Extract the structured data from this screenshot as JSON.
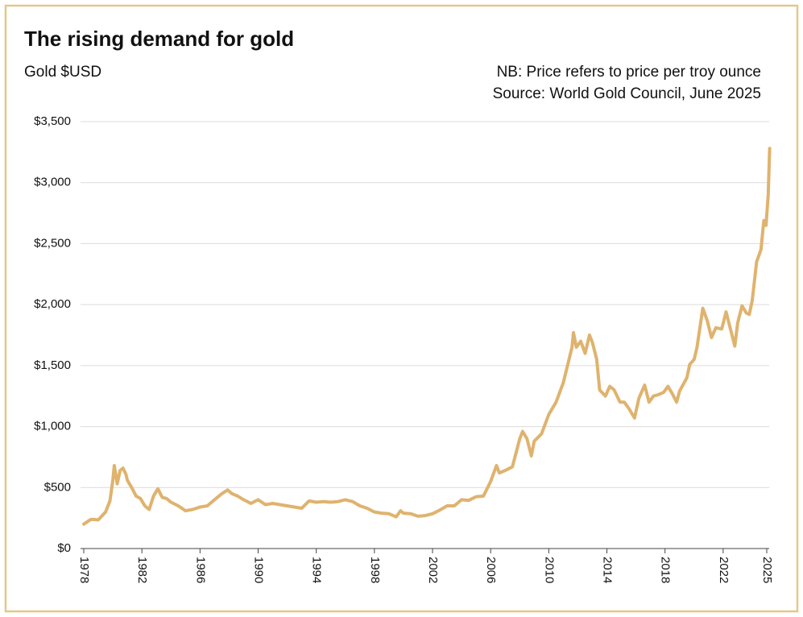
{
  "chart_data": {
    "type": "line",
    "title": "The rising demand for gold",
    "y_axis_label": "Gold $USD",
    "notes": [
      "NB: Price refers to price per troy ounce",
      "Source: World Gold Council, June 2025"
    ],
    "x": [
      1978.0,
      1978.5,
      1979.0,
      1979.5,
      1979.8,
      1980.0,
      1980.1,
      1980.3,
      1980.5,
      1980.7,
      1980.9,
      1981.0,
      1981.3,
      1981.6,
      1981.9,
      1982.2,
      1982.5,
      1982.8,
      1983.0,
      1983.1,
      1983.4,
      1983.7,
      1984.0,
      1984.5,
      1985.0,
      1985.5,
      1986.0,
      1986.5,
      1987.0,
      1987.5,
      1987.9,
      1988.2,
      1988.6,
      1989.0,
      1989.5,
      1990.0,
      1990.5,
      1991.0,
      1991.5,
      1992.0,
      1992.5,
      1993.0,
      1993.5,
      1994.0,
      1994.5,
      1995.0,
      1995.5,
      1996.0,
      1996.5,
      1997.0,
      1997.5,
      1998.0,
      1998.5,
      1999.0,
      1999.5,
      1999.8,
      2000.0,
      2000.5,
      2001.0,
      2001.5,
      2002.0,
      2002.5,
      2003.0,
      2003.5,
      2004.0,
      2004.5,
      2005.0,
      2005.5,
      2006.0,
      2006.4,
      2006.6,
      2007.0,
      2007.5,
      2008.0,
      2008.2,
      2008.5,
      2008.8,
      2009.0,
      2009.5,
      2010.0,
      2010.5,
      2011.0,
      2011.6,
      2011.7,
      2011.9,
      2012.2,
      2012.5,
      2012.8,
      2013.0,
      2013.3,
      2013.5,
      2013.9,
      2014.2,
      2014.5,
      2014.9,
      2015.2,
      2015.5,
      2015.9,
      2016.2,
      2016.6,
      2016.9,
      2017.2,
      2017.5,
      2017.9,
      2018.2,
      2018.5,
      2018.8,
      2019.0,
      2019.5,
      2019.7,
      2020.0,
      2020.2,
      2020.6,
      2020.9,
      2021.2,
      2021.5,
      2021.9,
      2022.2,
      2022.5,
      2022.8,
      2023.0,
      2023.3,
      2023.6,
      2023.8,
      2024.0,
      2024.3,
      2024.6,
      2024.8,
      2024.95,
      2025.1,
      2025.2
    ],
    "series": [
      {
        "name": "Gold",
        "color": "#dfb36e",
        "values": [
          200,
          240,
          235,
          300,
          390,
          560,
          680,
          530,
          640,
          660,
          610,
          560,
          500,
          430,
          410,
          350,
          320,
          430,
          470,
          490,
          420,
          410,
          380,
          350,
          310,
          320,
          340,
          350,
          400,
          450,
          480,
          450,
          430,
          400,
          370,
          400,
          360,
          370,
          360,
          350,
          340,
          330,
          390,
          380,
          385,
          380,
          385,
          400,
          385,
          350,
          330,
          300,
          290,
          285,
          260,
          310,
          290,
          285,
          265,
          270,
          285,
          315,
          350,
          350,
          400,
          395,
          425,
          430,
          550,
          680,
          620,
          640,
          670,
          900,
          960,
          900,
          760,
          880,
          940,
          1100,
          1200,
          1360,
          1650,
          1770,
          1650,
          1700,
          1600,
          1750,
          1690,
          1550,
          1300,
          1250,
          1330,
          1300,
          1200,
          1200,
          1150,
          1070,
          1230,
          1340,
          1200,
          1250,
          1260,
          1280,
          1330,
          1270,
          1200,
          1290,
          1400,
          1510,
          1550,
          1650,
          1970,
          1870,
          1730,
          1810,
          1800,
          1940,
          1800,
          1660,
          1850,
          1990,
          1930,
          1920,
          2030,
          2350,
          2450,
          2690,
          2650,
          2900,
          3280
        ]
      }
    ],
    "xlim": [
      1978,
      2025.2
    ],
    "xticks": [
      1978,
      1982,
      1986,
      1990,
      1994,
      1998,
      2002,
      2006,
      2010,
      2014,
      2018,
      2022,
      2025
    ],
    "ylim": [
      0,
      3500
    ],
    "yticks": [
      {
        "value": 0,
        "label": "$0"
      },
      {
        "value": 500,
        "label": "$500"
      },
      {
        "value": 1000,
        "label": "$1,000"
      },
      {
        "value": 1500,
        "label": "$1,500"
      },
      {
        "value": 2000,
        "label": "$2,000"
      },
      {
        "value": 2500,
        "label": "$2,500"
      },
      {
        "value": 3000,
        "label": "$3,000"
      },
      {
        "value": 3500,
        "label": "$3,500"
      }
    ],
    "grid": true
  }
}
